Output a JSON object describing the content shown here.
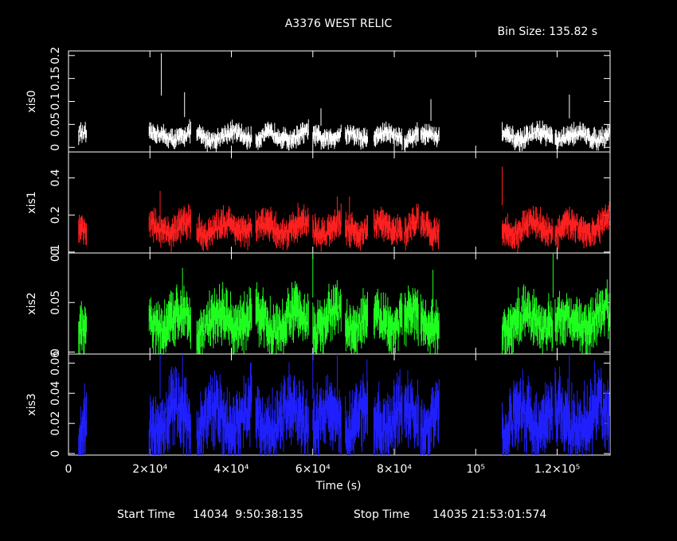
{
  "title": "A3376 WEST RELIC",
  "bin_size_text": "Bin Size: 135.82 s",
  "footer": {
    "start_label": "Start Time",
    "start_value": "14034  9:50:38:135",
    "stop_label": "Stop Time",
    "stop_value": "14035 21:53:01:574"
  },
  "chart_data": {
    "type": "line",
    "xlabel": "Time (s)",
    "xlim": [
      0,
      133000
    ],
    "x_ticks": [
      {
        "value": 0,
        "label": "0"
      },
      {
        "value": 20000,
        "label": "2×10⁴"
      },
      {
        "value": 40000,
        "label": "4×10⁴"
      },
      {
        "value": 60000,
        "label": "6×10⁴"
      },
      {
        "value": 80000,
        "label": "8×10⁴"
      },
      {
        "value": 100000,
        "label": "10⁵"
      },
      {
        "value": 120000,
        "label": "1.2×10⁵"
      }
    ],
    "segments": [
      [
        2500,
        4500
      ],
      [
        19800,
        30000
      ],
      [
        31500,
        45000
      ],
      [
        46000,
        59000
      ],
      [
        60000,
        67000
      ],
      [
        68000,
        73500
      ],
      [
        75000,
        82000
      ],
      [
        82500,
        86000
      ],
      [
        86500,
        91000
      ],
      [
        106500,
        119000
      ],
      [
        119500,
        133000
      ]
    ],
    "panels": [
      {
        "name": "xis0",
        "color": "#ffffff",
        "ylim": [
          -0.01,
          0.21
        ],
        "y_ticks": [
          {
            "value": 0,
            "label": "0"
          },
          {
            "value": 0.05,
            "label": "0.05"
          },
          {
            "value": 0.1,
            "label": "0.1"
          },
          {
            "value": 0.15,
            "label": "0.15"
          },
          {
            "value": 0.2,
            "label": "0.2"
          }
        ],
        "mean": 0.022,
        "spread": 0.013,
        "spikes": [
          [
            22800,
            0.205
          ],
          [
            28500,
            0.12
          ],
          [
            89000,
            0.105
          ],
          [
            123000,
            0.115
          ],
          [
            62000,
            0.085
          ],
          [
            106500,
            0.055
          ]
        ]
      },
      {
        "name": "xis1",
        "color": "#ff2020",
        "ylim": [
          -0.005,
          0.54
        ],
        "y_ticks": [
          {
            "value": 0,
            "label": "0"
          },
          {
            "value": 0.2,
            "label": "0.2"
          },
          {
            "value": 0.4,
            "label": "0.4"
          }
        ],
        "mean": 0.12,
        "spread": 0.05,
        "spikes": [
          [
            22500,
            0.33
          ],
          [
            106500,
            0.46
          ],
          [
            66000,
            0.3
          ],
          [
            69000,
            0.3
          ]
        ]
      },
      {
        "name": "xis2",
        "color": "#20ff20",
        "ylim": [
          -0.002,
          0.1
        ],
        "y_ticks": [
          {
            "value": 0,
            "label": "0"
          },
          {
            "value": 0.05,
            "label": "0.05"
          },
          {
            "value": 0.1,
            "label": "0.1"
          }
        ],
        "mean": 0.028,
        "spread": 0.016,
        "spikes": [
          [
            60000,
            0.1
          ],
          [
            119000,
            0.1
          ],
          [
            28000,
            0.085
          ],
          [
            89500,
            0.083
          ]
        ]
      },
      {
        "name": "xis3",
        "color": "#2020ff",
        "ylim": [
          -0.001,
          0.066
        ],
        "y_ticks": [
          {
            "value": 0,
            "label": "0"
          },
          {
            "value": 0.02,
            "label": "0.02"
          },
          {
            "value": 0.04,
            "label": "0.04"
          },
          {
            "value": 0.06,
            "label": "0.06"
          }
        ],
        "mean": 0.02,
        "spread": 0.014,
        "spikes": [
          [
            22500,
            0.066
          ],
          [
            28000,
            0.066
          ],
          [
            60000,
            0.066
          ],
          [
            66000,
            0.066
          ],
          [
            123000,
            0.066
          ]
        ]
      }
    ]
  }
}
